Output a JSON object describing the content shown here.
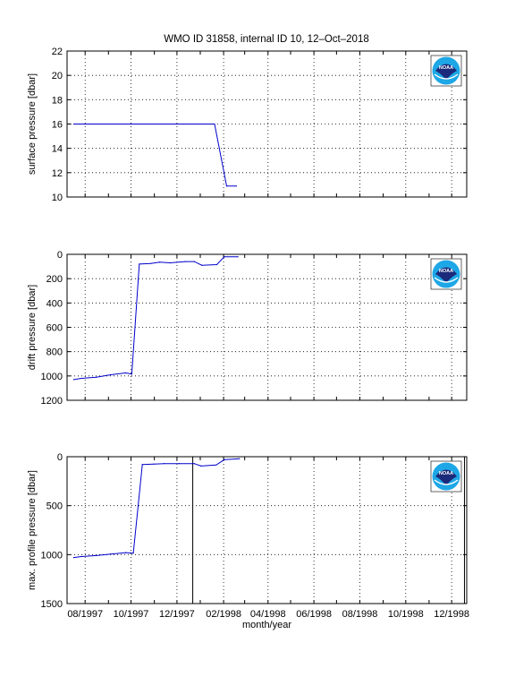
{
  "title": "WMO ID 31858, internal ID 10, 12–Oct–2018",
  "colors": {
    "line": "#0000cc",
    "axis": "#000000",
    "grid": "#000000",
    "logo_blue": "#1ea7e6",
    "logo_navy": "#1b2a7a"
  },
  "logo_text": "NOAA",
  "chart_data": [
    {
      "type": "line",
      "ylabel": "surface pressure [dbar]",
      "ylim": [
        10,
        22
      ],
      "y_reversed": false,
      "yticks": [
        10,
        12,
        14,
        16,
        18,
        20,
        22
      ],
      "ytick_labels": [
        "10",
        "12",
        "14",
        "16",
        "18",
        "20",
        "22"
      ],
      "xlim": [
        "1997-07-08",
        "1998-12-21"
      ],
      "grid": true,
      "series": [
        {
          "x": [
            "1997-07-17",
            "1997-10-01",
            "1998-01-20",
            "1998-02-05",
            "1998-02-18"
          ],
          "y": [
            16,
            16,
            16,
            10.9,
            10.9
          ]
        }
      ]
    },
    {
      "type": "line",
      "ylabel": "drift pressure [dbar]",
      "ylim": [
        0,
        1200
      ],
      "y_reversed": true,
      "yticks": [
        0,
        200,
        400,
        600,
        800,
        1000,
        1200
      ],
      "ytick_labels": [
        "0",
        "200",
        "400",
        "600",
        "800",
        "1000",
        "1200"
      ],
      "xlim": [
        "1997-07-08",
        "1998-12-21"
      ],
      "grid": true,
      "series": [
        {
          "x": [
            "1997-07-17",
            "1997-07-27",
            "1997-08-16",
            "1997-09-04",
            "1997-09-24",
            "1997-10-02",
            "1997-10-12",
            "1997-10-27",
            "1997-11-08",
            "1997-11-22",
            "1997-12-12",
            "1997-12-24",
            "1998-01-03",
            "1998-01-23",
            "1998-02-02",
            "1998-02-20"
          ],
          "y": [
            1030,
            1020,
            1010,
            990,
            975,
            985,
            80,
            75,
            65,
            70,
            60,
            60,
            90,
            85,
            20,
            20
          ]
        }
      ]
    },
    {
      "type": "line",
      "ylabel": "max. profile pressure [dbar]",
      "ylim": [
        0,
        1500
      ],
      "y_reversed": true,
      "yticks": [
        0,
        500,
        1000,
        1500
      ],
      "ytick_labels": [
        "0",
        "500",
        "1000",
        "1500"
      ],
      "xlim": [
        "1997-07-08",
        "1998-12-21"
      ],
      "xlabel": "month/year",
      "xtick_labels": [
        "08/1997",
        "10/1997",
        "12/1997",
        "02/1998",
        "04/1998",
        "06/1998",
        "08/1998",
        "10/1998",
        "12/1998"
      ],
      "grid": true,
      "vlines": [
        "1997-12-22",
        "1998-12-18"
      ],
      "series": [
        {
          "x": [
            "1997-07-17",
            "1997-07-27",
            "1997-08-16",
            "1997-09-04",
            "1997-09-24",
            "1997-10-04",
            "1997-10-16",
            "1997-10-31",
            "1997-11-14",
            "1997-12-04",
            "1997-12-24",
            "1998-01-02",
            "1998-01-22",
            "1998-02-02",
            "1998-02-22"
          ],
          "y": [
            1030,
            1020,
            1010,
            995,
            980,
            985,
            80,
            75,
            70,
            70,
            70,
            95,
            85,
            30,
            20
          ]
        }
      ]
    }
  ]
}
